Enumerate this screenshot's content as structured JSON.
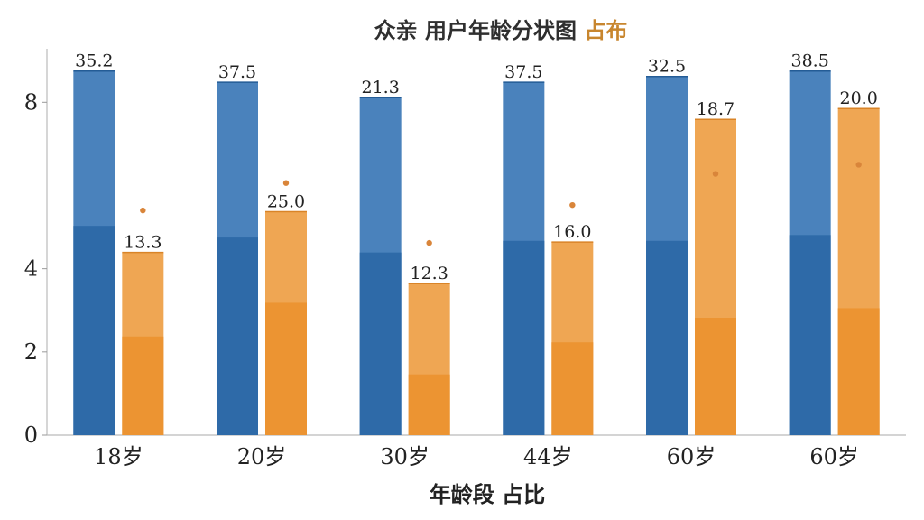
{
  "chart_data": {
    "type": "bar",
    "title_parts": [
      {
        "text": "众亲 用户年龄分状图",
        "color": "#2f2f2f"
      },
      {
        "text": " 占布",
        "color": "#c8862e"
      }
    ],
    "xlabel": "年龄段 占比",
    "ylabel": "",
    "ylim": [
      0,
      9.2
    ],
    "yticks": [
      0,
      2,
      4,
      8
    ],
    "ytick_labels": [
      "0",
      "2",
      "4",
      "8"
    ],
    "categories": [
      "18岁",
      "20岁",
      "30岁",
      "44岁",
      "60岁",
      "60岁"
    ],
    "series": [
      {
        "color_dark": "#2e6aa8",
        "color_light": "#4a82bc",
        "values": [
          8.75,
          8.48,
          8.12,
          8.48,
          8.62,
          8.75
        ],
        "inner_values": [
          5.03,
          4.75,
          4.39,
          4.67,
          4.67,
          4.81
        ],
        "labels": [
          "35.2",
          "37.5",
          "21.3",
          "37.5",
          "32.5",
          "38.5"
        ],
        "markers": [
          null,
          null,
          null,
          null,
          null,
          null
        ]
      },
      {
        "color_dark": "#ec9432",
        "color_light": "#efa653",
        "values": [
          4.39,
          5.37,
          3.64,
          4.64,
          7.59,
          7.85
        ],
        "inner_values": [
          2.37,
          3.18,
          1.46,
          2.23,
          2.82,
          3.05
        ],
        "labels": [
          "13.3",
          "25.0",
          "12.3",
          "16.0",
          "18.7",
          "20.0"
        ],
        "markers": [
          5.4,
          6.06,
          4.62,
          5.53,
          6.28,
          6.5
        ]
      }
    ],
    "marker_color": "#d9853a",
    "grid": false,
    "legend": "none"
  }
}
